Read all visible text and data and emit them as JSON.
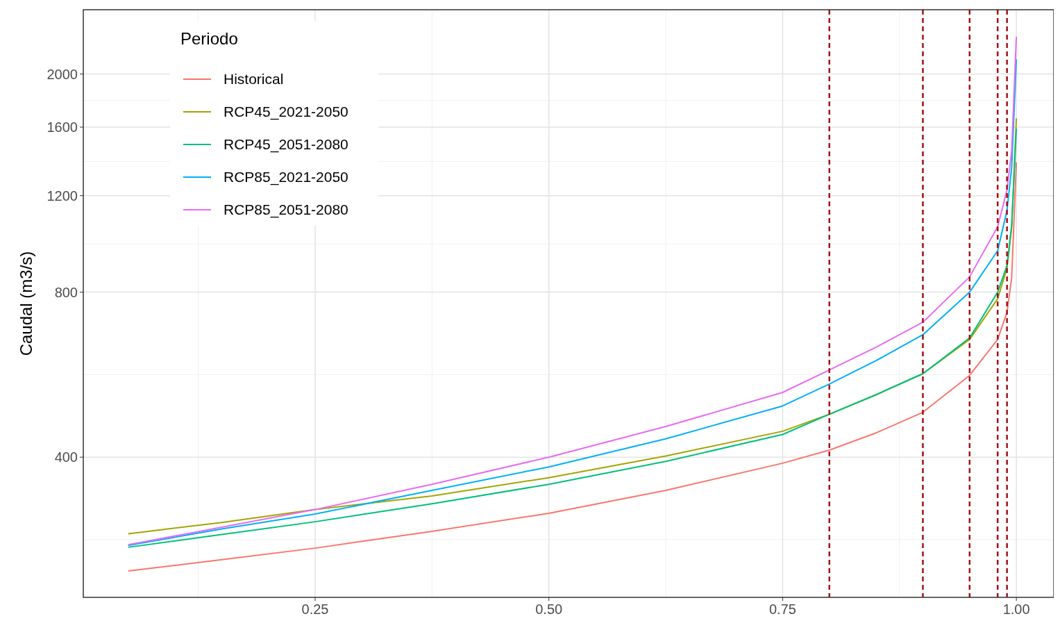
{
  "chart_data": {
    "type": "line",
    "ylabel": "Caudal (m3/s)",
    "legend_title": "Periodo",
    "legend": "top left",
    "grid": true,
    "log": "y",
    "x": [
      0.05,
      0.15,
      0.25,
      0.375,
      0.5,
      0.625,
      0.75,
      0.8,
      0.85,
      0.9,
      0.95,
      0.98,
      0.99,
      0.995,
      1.0
    ],
    "xlim": [
      0.002,
      1.04
    ],
    "xticks": [
      0.25,
      {
        "value": 0.5,
        "label": "0.50"
      },
      0.75,
      {
        "value": 1,
        "label": "1.00"
      }
    ],
    "ylim": [
      222,
      2620
    ],
    "yticks": [
      400,
      800,
      1200,
      1600,
      2000
    ],
    "series": [
      {
        "name": "Historical",
        "color": "#f8766d",
        "values": [
          248,
          260,
          273,
          293,
          316,
          348,
          390,
          412,
          443,
          483,
          564,
          656,
          735,
          850,
          1380
        ]
      },
      {
        "name": "RCP45_2021-2050",
        "color": "#a3a500",
        "values": [
          290,
          304,
          321,
          340,
          367,
          402,
          446,
          479,
          520,
          568,
          656,
          778,
          885,
          1050,
          1660
        ]
      },
      {
        "name": "RCP45_2051-2080",
        "color": "#00bf7d",
        "values": [
          274,
          289,
          305,
          329,
          357,
          393,
          440,
          479,
          520,
          568,
          660,
          800,
          895,
          1060,
          1590
        ]
      },
      {
        "name": "RCP85_2021-2050",
        "color": "#00b0f6",
        "values": [
          276,
          296,
          315,
          348,
          384,
          432,
          496,
          544,
          600,
          669,
          800,
          952,
          1128,
          1350,
          2127
        ]
      },
      {
        "name": "RCP85_2051-2080",
        "color": "#e76bf3",
        "values": [
          277,
          298,
          321,
          357,
          400,
          455,
          525,
          577,
          635,
          705,
          853,
          1053,
          1229,
          1450,
          2340
        ]
      }
    ],
    "ref_lines": [
      {
        "axis": "x",
        "value": 0.8,
        "color": "#a50f15",
        "line_style": "dashed"
      },
      {
        "axis": "x",
        "value": 0.9,
        "color": "#a50f15",
        "line_style": "dashed"
      },
      {
        "axis": "x",
        "value": 0.95,
        "color": "#a50f15",
        "line_style": "dashed"
      },
      {
        "axis": "x",
        "value": 0.98,
        "color": "#a50f15",
        "line_style": "dashed"
      },
      {
        "axis": "x",
        "value": 0.99,
        "color": "#a50f15",
        "line_style": "dashed"
      }
    ]
  }
}
